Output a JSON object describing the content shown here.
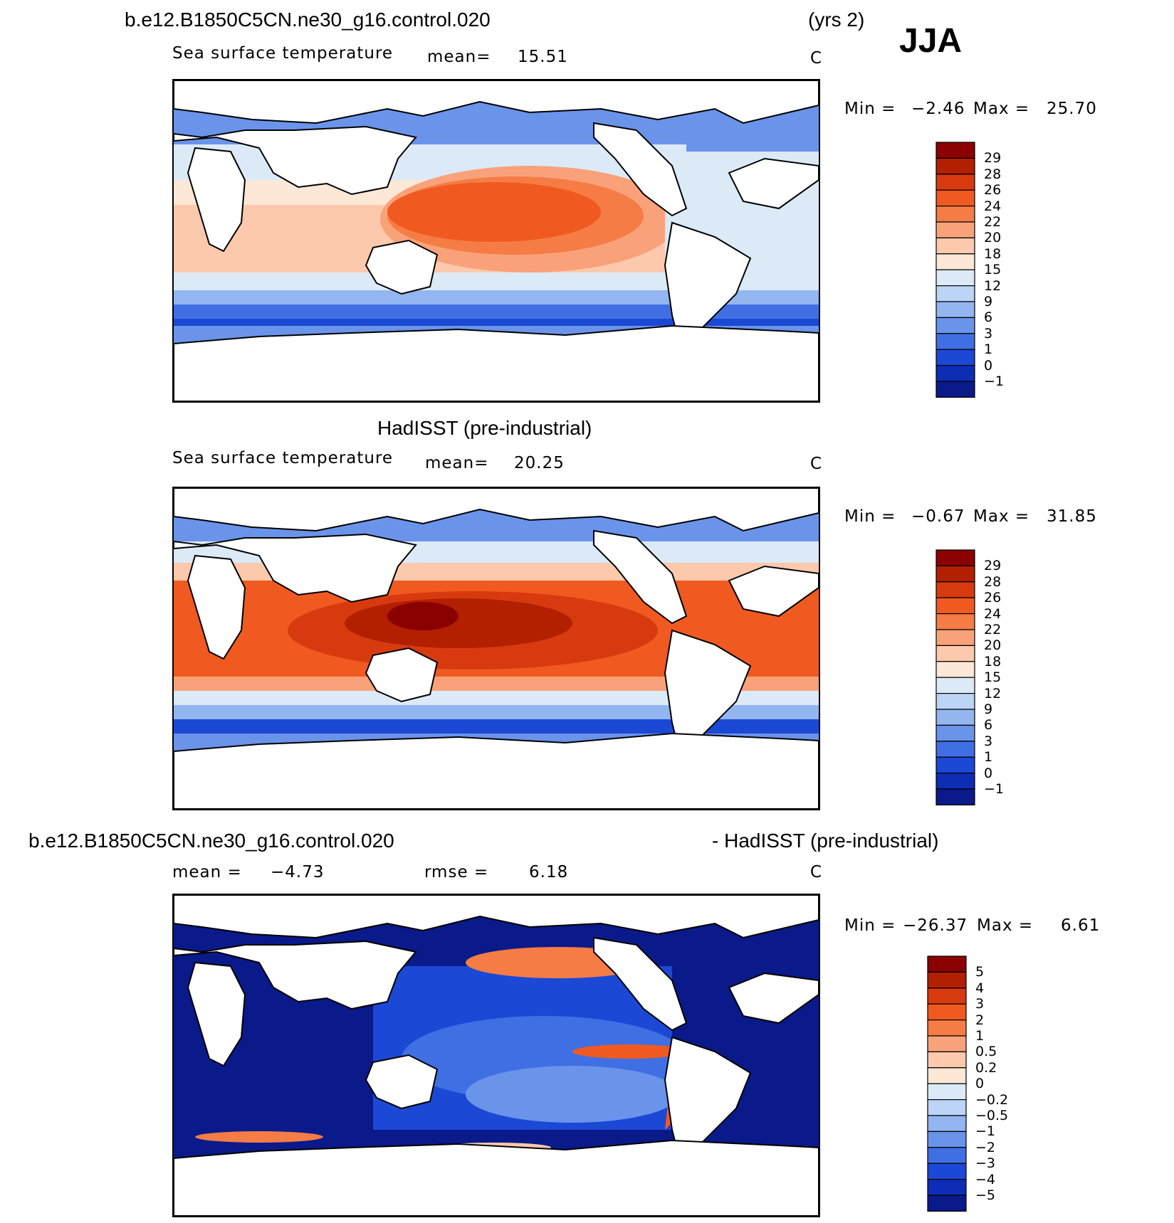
{
  "header": {
    "case_name": "b.e12.B1850C5CN.ne30_g16.control.020",
    "years": "(yrs 2)",
    "season": "JJA"
  },
  "panels": [
    {
      "id": "model",
      "title": "",
      "variable": "Sea surface temperature",
      "mean_label": "mean=",
      "mean_value": "15.51",
      "units": "C",
      "min_label": "Min =",
      "min_value": "−2.46",
      "max_label": "Max =",
      "max_value": "25.70",
      "colorbar_labels": [
        "29",
        "28",
        "26",
        "24",
        "22",
        "20",
        "18",
        "15",
        "12",
        "9",
        "6",
        "3",
        "1",
        "0",
        "−1"
      ],
      "colors": [
        "#8b0000",
        "#b22000",
        "#d83a10",
        "#f05a20",
        "#f57c45",
        "#f9a27a",
        "#fcc9ad",
        "#fde7d6",
        "#dceaf8",
        "#bcd4f5",
        "#93b6f0",
        "#6a94ea",
        "#3f6fe3",
        "#1c48d6",
        "#0d2db4",
        "#0a1a8a"
      ]
    },
    {
      "id": "obs",
      "title": "HadISST (pre-industrial)",
      "variable": "Sea surface temperature",
      "mean_label": "mean=",
      "mean_value": "20.25",
      "units": "C",
      "min_label": "Min =",
      "min_value": "−0.67",
      "max_label": "Max =",
      "max_value": "31.85",
      "colorbar_labels": [
        "29",
        "28",
        "26",
        "24",
        "22",
        "20",
        "18",
        "15",
        "12",
        "9",
        "6",
        "3",
        "1",
        "0",
        "−1"
      ],
      "colors": [
        "#8b0000",
        "#b22000",
        "#d83a10",
        "#f05a20",
        "#f57c45",
        "#f9a27a",
        "#fcc9ad",
        "#fde7d6",
        "#dceaf8",
        "#bcd4f5",
        "#93b6f0",
        "#6a94ea",
        "#3f6fe3",
        "#1c48d6",
        "#0d2db4",
        "#0a1a8a"
      ]
    },
    {
      "id": "diff",
      "title_left": "b.e12.B1850C5CN.ne30_g16.control.020",
      "title_right": "- HadISST (pre-industrial)",
      "mean_label": "mean =",
      "mean_value": "−4.73",
      "rmse_label": "rmse =",
      "rmse_value": "6.18",
      "units": "C",
      "min_label": "Min =",
      "min_value": "−26.37",
      "max_label": "Max =",
      "max_value": "6.61",
      "colorbar_labels": [
        "5",
        "4",
        "3",
        "2",
        "1",
        "0.5",
        "0.2",
        "0",
        "−0.2",
        "−0.5",
        "−1",
        "−2",
        "−3",
        "−4",
        "−5"
      ],
      "colors": [
        "#8b0000",
        "#b22000",
        "#d83a10",
        "#f05a20",
        "#f57c45",
        "#f9a27a",
        "#fcc9ad",
        "#fde7d6",
        "#dceaf8",
        "#bcd4f5",
        "#93b6f0",
        "#6a94ea",
        "#3f6fe3",
        "#1c48d6",
        "#0d2db4",
        "#0a1a8a"
      ]
    }
  ]
}
